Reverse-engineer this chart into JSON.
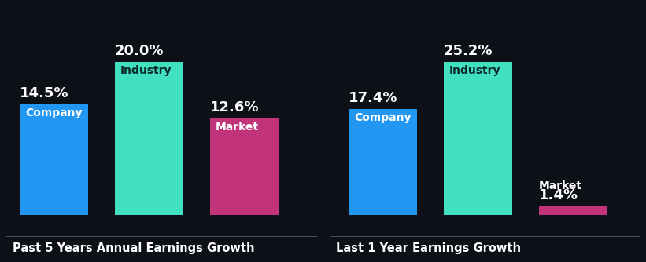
{
  "background_color": "#0d1117",
  "chart1": {
    "title": "Past 5 Years Annual Earnings Growth",
    "categories": [
      "Company",
      "Industry",
      "Market"
    ],
    "values": [
      14.5,
      20.0,
      12.6
    ],
    "colors": [
      "#2196f3",
      "#40e0c0",
      "#c2347a"
    ],
    "labels": [
      "14.5%",
      "20.0%",
      "12.6%"
    ],
    "label_colors": [
      "#ffffff",
      "#0d2a2a",
      "#ffffff"
    ],
    "value_colors": [
      "#ffffff",
      "#ffffff",
      "#ffffff"
    ]
  },
  "chart2": {
    "title": "Last 1 Year Earnings Growth",
    "categories": [
      "Company",
      "Industry",
      "Market"
    ],
    "values": [
      17.4,
      25.2,
      1.4
    ],
    "colors": [
      "#2196f3",
      "#40e0c0",
      "#c2347a"
    ],
    "labels": [
      "17.4%",
      "25.2%",
      "1.4%"
    ],
    "label_colors": [
      "#ffffff",
      "#0d2a2a",
      "#ffffff"
    ],
    "value_colors": [
      "#ffffff",
      "#ffffff",
      "#ffffff"
    ]
  },
  "title_fontsize": 10.5,
  "value_fontsize": 13,
  "bar_inner_label_fontsize": 10,
  "text_color": "#ffffff",
  "bar_width": 0.72
}
